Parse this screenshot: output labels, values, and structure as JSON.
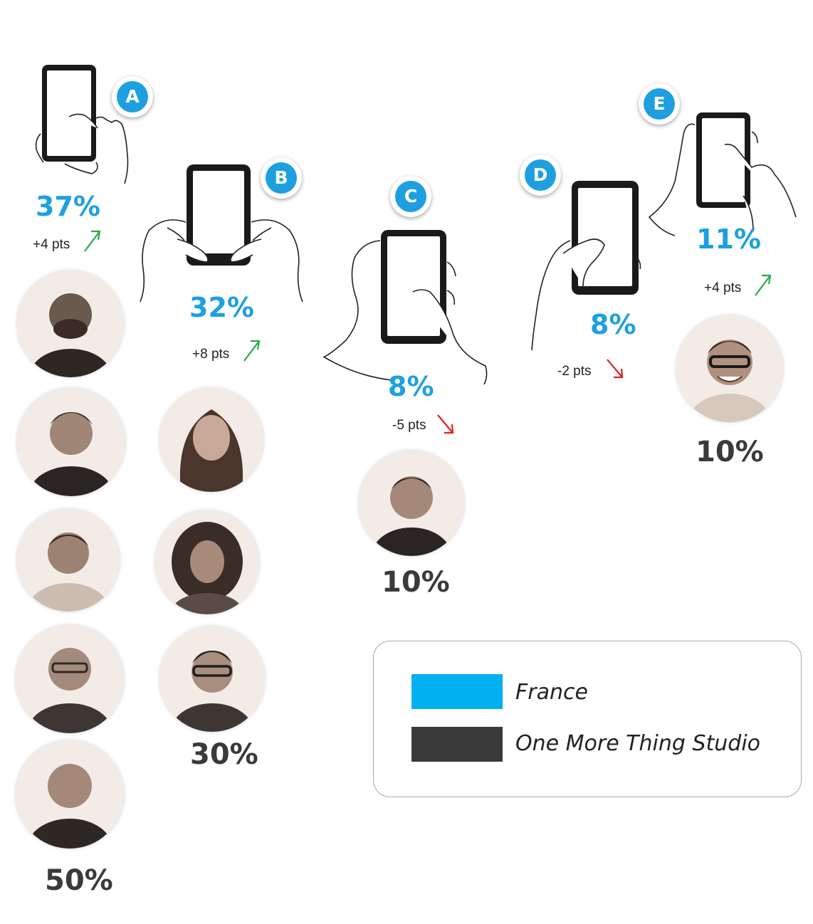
{
  "postures": [
    {
      "letter": "A",
      "france_pct": "37%",
      "change": "+4 pts",
      "trend": "up",
      "studio_pct": "50%"
    },
    {
      "letter": "B",
      "france_pct": "32%",
      "change": "+8 pts",
      "trend": "up",
      "studio_pct": "30%"
    },
    {
      "letter": "C",
      "france_pct": "8%",
      "change": "-5 pts",
      "trend": "down",
      "studio_pct": "10%"
    },
    {
      "letter": "D",
      "france_pct": "8%",
      "change": "-2 pts",
      "trend": "down",
      "studio_pct": ""
    },
    {
      "letter": "E",
      "france_pct": "11%",
      "change": "+4 pts",
      "trend": "up",
      "studio_pct": "10%"
    }
  ],
  "legend": [
    {
      "label": "France",
      "color": "#00b0f0"
    },
    {
      "label": "One More Thing Studio",
      "color": "#3a3a3a"
    }
  ],
  "colors": {
    "accent": "#1ea0e0",
    "up": "#2aa84a",
    "down": "#e02020",
    "studio": "#3a3a3a"
  }
}
